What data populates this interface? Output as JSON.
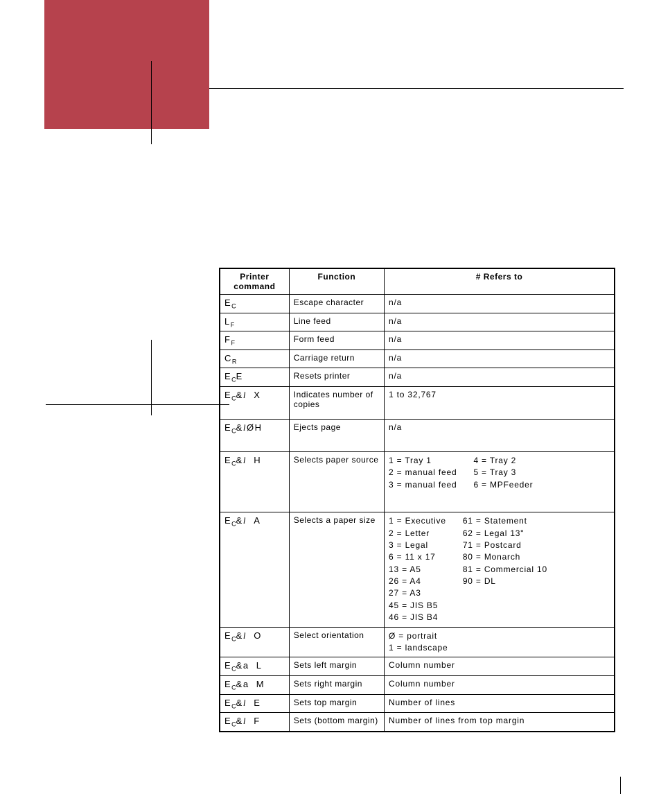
{
  "table": {
    "headers": {
      "cmd": "Printer command",
      "fn": "Function",
      "ref": "# Refers to"
    },
    "rows": [
      {
        "cmd_html": "E<sub>C</sub>",
        "fn": "Escape character",
        "ref": "n/a"
      },
      {
        "cmd_html": "L<sub>F</sub>",
        "fn": "Line feed",
        "ref": "n/a"
      },
      {
        "cmd_html": "F<sub>F</sub>",
        "fn": "Form feed",
        "ref": "n/a"
      },
      {
        "cmd_html": "C<sub>R</sub>",
        "fn": "Carriage return",
        "ref": "n/a"
      },
      {
        "cmd_html": "E<sub>C</sub>E",
        "fn": "Resets printer",
        "ref": "n/a"
      },
      {
        "cmd_html": "E<sub>C</sub>&<span class='ell'>l</span>&nbsp;&nbsp;X",
        "fn": "Indicates number of copies",
        "ref": "1 to 32,767",
        "tall": true
      },
      {
        "cmd_html": "E<sub>C</sub>&<span class='ell'>l</span>ØH",
        "fn": "Ejects page",
        "ref": "n/a",
        "tall": true
      },
      {
        "cmd_html": "E<sub>C</sub>&<span class='ell'>l</span>&nbsp;&nbsp;H",
        "fn": "Selects paper source",
        "ref_cols": [
          [
            "1 = Tray 1",
            "2 = manual feed",
            "3 = manual feed"
          ],
          [
            "4 = Tray 2",
            "5 = Tray 3",
            "6 = MPFeeder"
          ]
        ],
        "xtall": true
      },
      {
        "cmd_html": "E<sub>C</sub>&<span class='ell'>l</span>&nbsp;&nbsp;A",
        "fn": "Selects a paper size",
        "ref_cols": [
          [
            "1 = Executive",
            "2 = Letter",
            "3 = Legal",
            "6 = 11 x 17",
            "13 = A5",
            "26 = A4",
            "27 = A3",
            "45 = JIS B5",
            "46 = JIS B4"
          ],
          [
            "61 = Statement",
            "62 = Legal 13\"",
            "71 = Postcard",
            "80 = Monarch",
            "81 = Commercial 10",
            "90 = DL"
          ]
        ]
      },
      {
        "cmd_html": "E<sub>C</sub>&<span class='ell'>l</span>&nbsp;&nbsp;O",
        "fn": "Select orientation",
        "ref_lines": [
          "Ø = portrait",
          "1 = landscape"
        ]
      },
      {
        "cmd_html": "E<sub>C</sub>&a&nbsp;&nbsp;L",
        "fn": "Sets left margin",
        "ref": "Column number"
      },
      {
        "cmd_html": "E<sub>C</sub>&a&nbsp;&nbsp;M",
        "fn": "Sets right margin",
        "ref": "Column number"
      },
      {
        "cmd_html": "E<sub>C</sub>&<span class='ell'>l</span>&nbsp;&nbsp;E",
        "fn": "Sets top margin",
        "ref": "Number of lines"
      },
      {
        "cmd_html": "E<sub>C</sub>&<span class='ell'>l</span>&nbsp;&nbsp;F",
        "fn": "Sets (bottom margin)",
        "ref": "Number of lines from top margin"
      }
    ]
  },
  "colors": {
    "accent": "#b6424d",
    "border": "#000000",
    "bg": "#ffffff"
  }
}
